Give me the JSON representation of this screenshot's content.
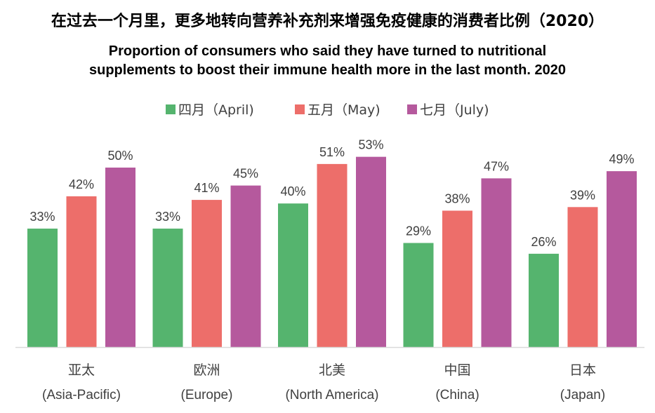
{
  "title_cn": "在过去一个月里，更多地转向营养补充剂来增强免疫健康的消费者比例（2020）",
  "title_en": {
    "line1": "Proportion of consumers who said they have turned to nutritional",
    "line2": "supplements to boost their immune health more in the last month. 2020"
  },
  "chart_data": {
    "type": "bar",
    "categories": [
      {
        "cn": "亚太",
        "en": "(Asia-Pacific)"
      },
      {
        "cn": "欧洲",
        "en": "(Europe)"
      },
      {
        "cn": "北美",
        "en": "(North America)"
      },
      {
        "cn": "中国",
        "en": "(China)"
      },
      {
        "cn": "日本",
        "en": "(Japan)"
      }
    ],
    "series": [
      {
        "name": "四月（April)",
        "color": "#55b46e",
        "values": [
          33,
          33,
          40,
          29,
          26
        ],
        "labels": [
          "33%",
          "33%",
          "40%",
          "29%",
          "26%"
        ]
      },
      {
        "name": "五月（May)",
        "color": "#ed6e6a",
        "values": [
          42,
          41,
          51,
          38,
          39
        ],
        "labels": [
          "42%",
          "41%",
          "51%",
          "38%",
          "39%"
        ]
      },
      {
        "name": "七月（July)",
        "color": "#b5599d",
        "values": [
          50,
          45,
          53,
          47,
          49
        ],
        "labels": [
          "50%",
          "45%",
          "53%",
          "47%",
          "49%"
        ]
      }
    ],
    "ylim": [
      0,
      70
    ],
    "grid": false,
    "legend_position": "top-center",
    "axis_color": "#d9d9d9"
  }
}
